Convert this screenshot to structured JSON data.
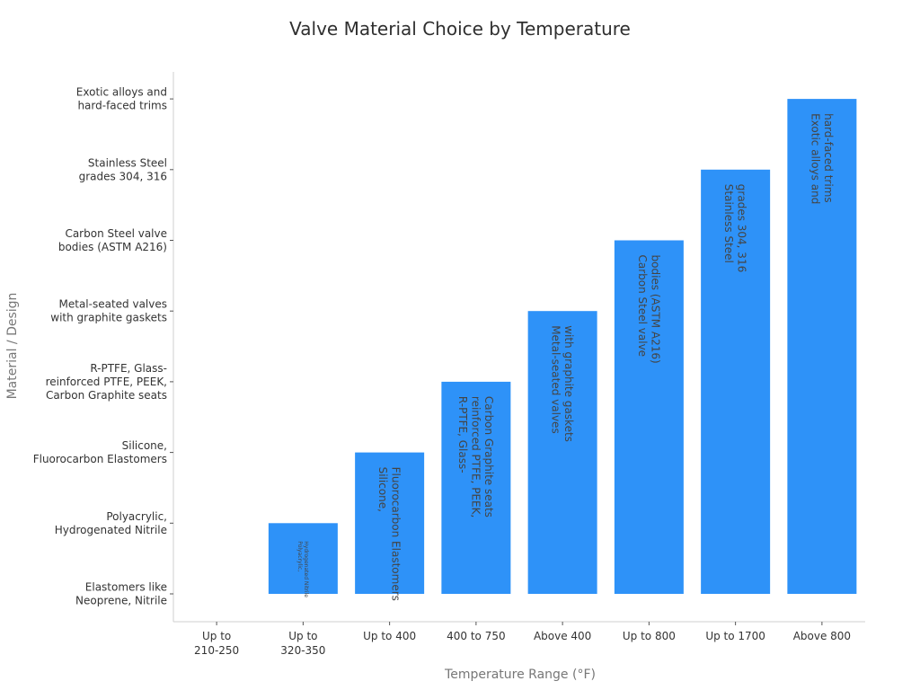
{
  "chart_data": {
    "type": "bar",
    "title": "Valve Material Choice by Temperature",
    "xlabel": "Temperature Range (°F)",
    "ylabel": "Material / Design",
    "categories": [
      "Up to\n210-250",
      "Up to\n320-350",
      "Up to 400",
      "400 to 750",
      "Above 400",
      "Up to 800",
      "Up to 1700",
      "Above 800"
    ],
    "y_categories": [
      "Elastomers like\nNeoprene, Nitrile",
      "Polyacrylic,\nHydrogenated Nitrile",
      "Silicone,\nFluorocarbon Elastomers",
      "R-PTFE, Glass-\nreinforced PTFE, PEEK,\nCarbon Graphite seats",
      "Metal-seated valves\nwith graphite gaskets",
      "Carbon Steel valve\nbodies (ASTM A216)",
      "Stainless Steel\ngrades 304, 316",
      "Exotic alloys and\nhard-faced trims"
    ],
    "values": [
      0,
      1,
      2,
      3,
      4,
      5,
      6,
      7
    ],
    "bar_labels": [
      "",
      "Polyacrylic,\nHydrogenated Nitrile",
      "Silicone,\nFluorocarbon Elastomers",
      "R-PTFE, Glass-\nreinforced PTFE, PEEK,\nCarbon Graphite seats",
      "Metal-seated valves\nwith graphite gaskets",
      "Carbon Steel valve\nbodies (ASTM A216)",
      "Stainless Steel\ngrades 304, 316",
      "Exotic alloys and\nhard-faced trims"
    ],
    "bar_color": "#2e92f8",
    "grid": false,
    "legend": "none"
  }
}
